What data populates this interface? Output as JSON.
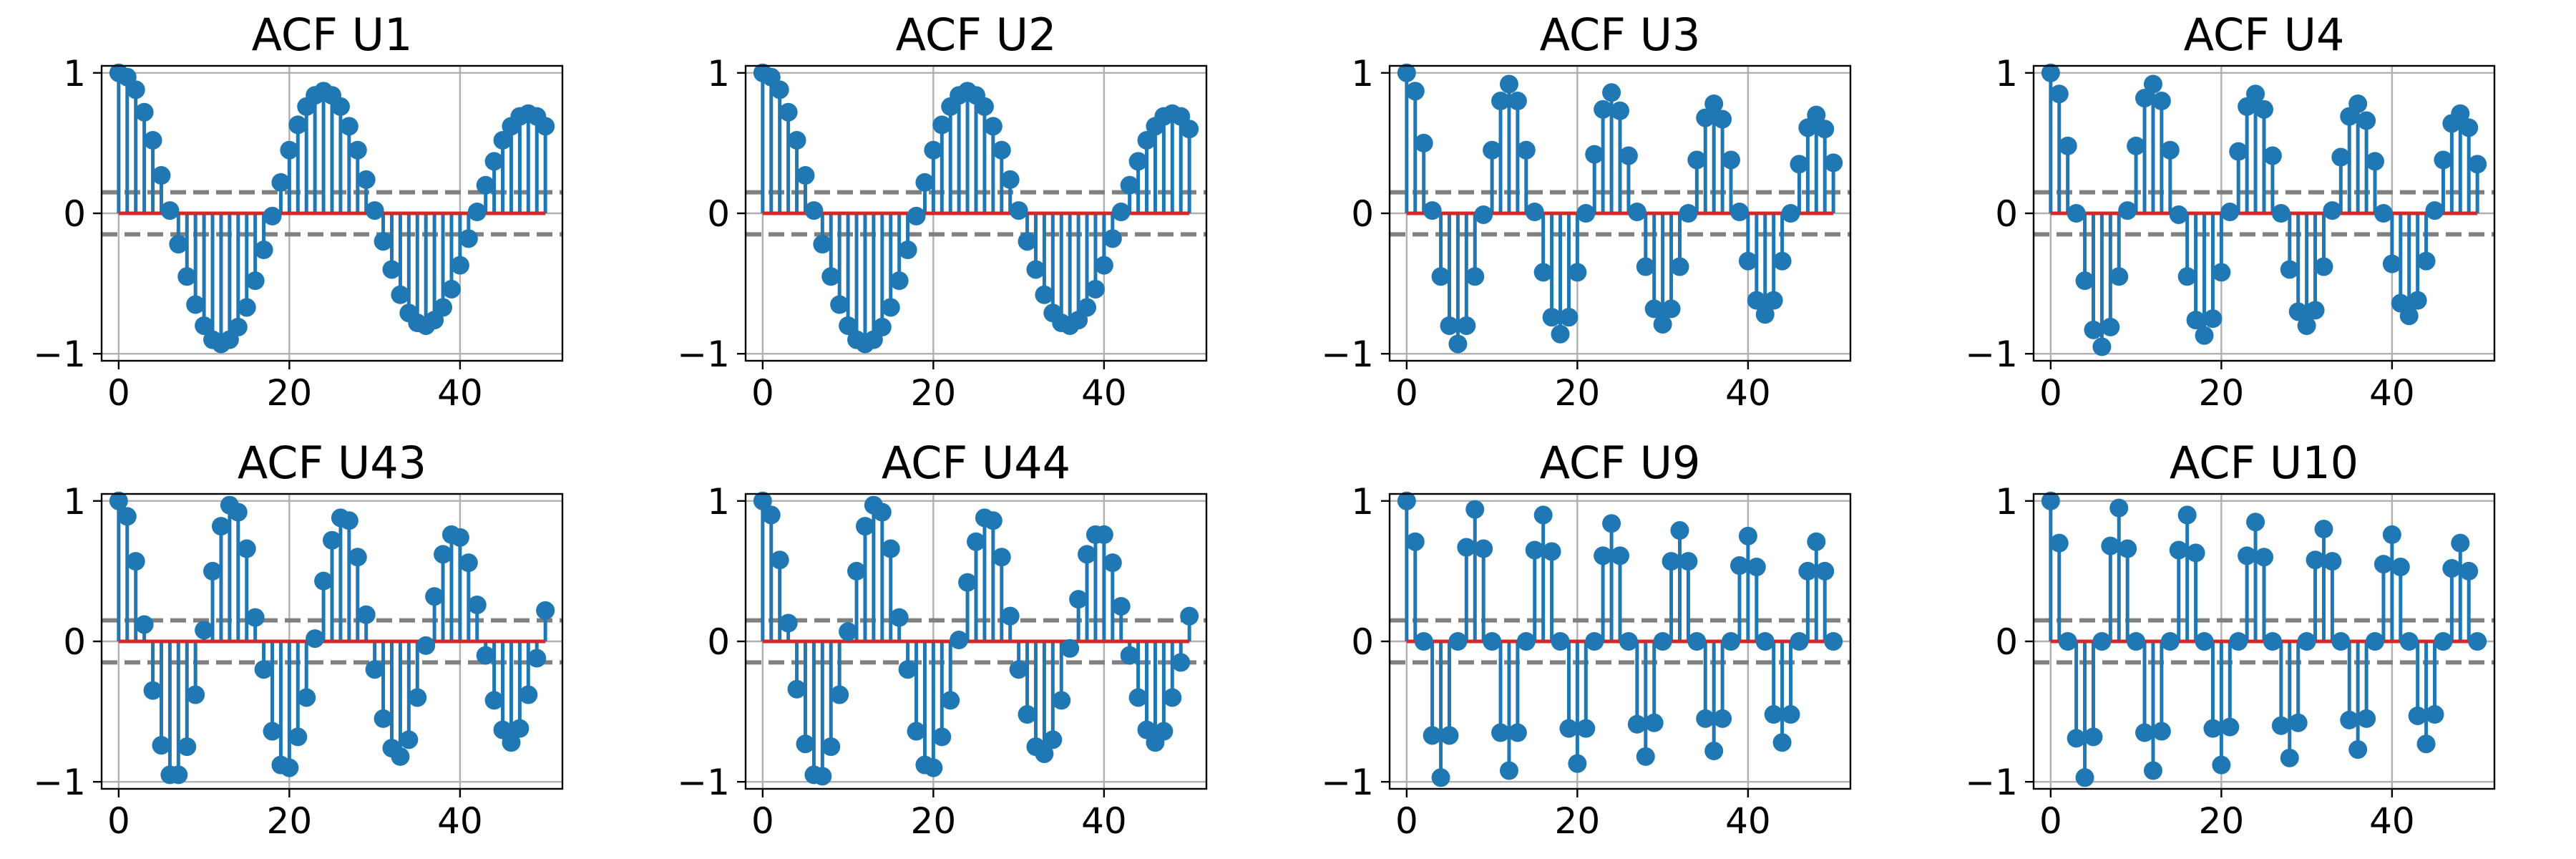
{
  "colors": {
    "stem": "#1f77b4",
    "baseline": "#d62728",
    "confidence_band": "#808080",
    "grid": "#b0b0b0"
  },
  "chart_data": [
    {
      "type": "stem",
      "title": "ACF U1",
      "xlim": [
        -2,
        52
      ],
      "ylim": [
        -1.05,
        1.05
      ],
      "xticks": [
        0,
        20,
        40
      ],
      "yticks": [
        -1,
        0,
        1
      ],
      "grid": true,
      "confidence_band": [
        -0.15,
        0.15
      ],
      "x": [
        0,
        1,
        2,
        3,
        4,
        5,
        6,
        7,
        8,
        9,
        10,
        11,
        12,
        13,
        14,
        15,
        16,
        17,
        18,
        19,
        20,
        21,
        22,
        23,
        24,
        25,
        26,
        27,
        28,
        29,
        30,
        31,
        32,
        33,
        34,
        35,
        36,
        37,
        38,
        39,
        40,
        41,
        42,
        43,
        44,
        45,
        46,
        47,
        48,
        49,
        50
      ],
      "values": [
        1.0,
        0.97,
        0.88,
        0.72,
        0.52,
        0.27,
        0.02,
        -0.22,
        -0.45,
        -0.65,
        -0.8,
        -0.9,
        -0.93,
        -0.9,
        -0.81,
        -0.67,
        -0.48,
        -0.26,
        -0.02,
        0.22,
        0.45,
        0.63,
        0.76,
        0.84,
        0.87,
        0.84,
        0.76,
        0.62,
        0.45,
        0.24,
        0.02,
        -0.2,
        -0.4,
        -0.58,
        -0.71,
        -0.78,
        -0.8,
        -0.76,
        -0.67,
        -0.54,
        -0.37,
        -0.18,
        0.01,
        0.2,
        0.37,
        0.52,
        0.62,
        0.69,
        0.71,
        0.69,
        0.62
      ]
    },
    {
      "type": "stem",
      "title": "ACF U2",
      "xlim": [
        -2,
        52
      ],
      "ylim": [
        -1.05,
        1.05
      ],
      "xticks": [
        0,
        20,
        40
      ],
      "yticks": [
        -1,
        0,
        1
      ],
      "grid": true,
      "confidence_band": [
        -0.15,
        0.15
      ],
      "x": [
        0,
        1,
        2,
        3,
        4,
        5,
        6,
        7,
        8,
        9,
        10,
        11,
        12,
        13,
        14,
        15,
        16,
        17,
        18,
        19,
        20,
        21,
        22,
        23,
        24,
        25,
        26,
        27,
        28,
        29,
        30,
        31,
        32,
        33,
        34,
        35,
        36,
        37,
        38,
        39,
        40,
        41,
        42,
        43,
        44,
        45,
        46,
        47,
        48,
        49,
        50
      ],
      "values": [
        1.0,
        0.97,
        0.88,
        0.72,
        0.52,
        0.27,
        0.02,
        -0.22,
        -0.45,
        -0.65,
        -0.8,
        -0.9,
        -0.93,
        -0.9,
        -0.81,
        -0.67,
        -0.48,
        -0.26,
        -0.02,
        0.22,
        0.45,
        0.63,
        0.76,
        0.84,
        0.87,
        0.84,
        0.76,
        0.62,
        0.45,
        0.24,
        0.02,
        -0.2,
        -0.4,
        -0.58,
        -0.71,
        -0.78,
        -0.8,
        -0.76,
        -0.67,
        -0.54,
        -0.37,
        -0.18,
        0.01,
        0.2,
        0.37,
        0.52,
        0.62,
        0.69,
        0.71,
        0.69,
        0.6
      ]
    },
    {
      "type": "stem",
      "title": "ACF U3",
      "xlim": [
        -2,
        52
      ],
      "ylim": [
        -1.05,
        1.05
      ],
      "xticks": [
        0,
        20,
        40
      ],
      "yticks": [
        -1,
        0,
        1
      ],
      "grid": true,
      "confidence_band": [
        -0.15,
        0.15
      ],
      "x": [
        0,
        1,
        2,
        3,
        4,
        5,
        6,
        7,
        8,
        9,
        10,
        11,
        12,
        13,
        14,
        15,
        16,
        17,
        18,
        19,
        20,
        21,
        22,
        23,
        24,
        25,
        26,
        27,
        28,
        29,
        30,
        31,
        32,
        33,
        34,
        35,
        36,
        37,
        38,
        39,
        40,
        41,
        42,
        43,
        44,
        45,
        46,
        47,
        48,
        49,
        50
      ],
      "values": [
        1.0,
        0.87,
        0.5,
        0.02,
        -0.45,
        -0.8,
        -0.93,
        -0.8,
        -0.45,
        -0.01,
        0.45,
        0.8,
        0.92,
        0.8,
        0.45,
        0.01,
        -0.42,
        -0.74,
        -0.86,
        -0.74,
        -0.42,
        0.0,
        0.42,
        0.74,
        0.86,
        0.73,
        0.41,
        0.01,
        -0.38,
        -0.68,
        -0.79,
        -0.68,
        -0.38,
        0.0,
        0.38,
        0.68,
        0.78,
        0.67,
        0.38,
        0.01,
        -0.34,
        -0.62,
        -0.72,
        -0.62,
        -0.34,
        0.0,
        0.35,
        0.61,
        0.7,
        0.6,
        0.36
      ]
    },
    {
      "type": "stem",
      "title": "ACF U4",
      "xlim": [
        -2,
        52
      ],
      "ylim": [
        -1.05,
        1.05
      ],
      "xticks": [
        0,
        20,
        40
      ],
      "yticks": [
        -1,
        0,
        1
      ],
      "grid": true,
      "confidence_band": [
        -0.15,
        0.15
      ],
      "x": [
        0,
        1,
        2,
        3,
        4,
        5,
        6,
        7,
        8,
        9,
        10,
        11,
        12,
        13,
        14,
        15,
        16,
        17,
        18,
        19,
        20,
        21,
        22,
        23,
        24,
        25,
        26,
        27,
        28,
        29,
        30,
        31,
        32,
        33,
        34,
        35,
        36,
        37,
        38,
        39,
        40,
        41,
        42,
        43,
        44,
        45,
        46,
        47,
        48,
        49,
        50
      ],
      "values": [
        1.0,
        0.85,
        0.48,
        0.0,
        -0.48,
        -0.83,
        -0.95,
        -0.81,
        -0.45,
        0.02,
        0.48,
        0.82,
        0.92,
        0.8,
        0.45,
        -0.01,
        -0.45,
        -0.76,
        -0.87,
        -0.75,
        -0.42,
        0.01,
        0.44,
        0.76,
        0.85,
        0.74,
        0.41,
        0.0,
        -0.4,
        -0.7,
        -0.8,
        -0.69,
        -0.38,
        0.02,
        0.4,
        0.69,
        0.78,
        0.66,
        0.37,
        0.0,
        -0.36,
        -0.64,
        -0.73,
        -0.62,
        -0.34,
        0.02,
        0.38,
        0.64,
        0.71,
        0.61,
        0.35
      ]
    },
    {
      "type": "stem",
      "title": "ACF U43",
      "xlim": [
        -2,
        52
      ],
      "ylim": [
        -1.05,
        1.05
      ],
      "xticks": [
        0,
        20,
        40
      ],
      "yticks": [
        -1,
        0,
        1
      ],
      "grid": true,
      "confidence_band": [
        -0.15,
        0.15
      ],
      "x": [
        0,
        1,
        2,
        3,
        4,
        5,
        6,
        7,
        8,
        9,
        10,
        11,
        12,
        13,
        14,
        15,
        16,
        17,
        18,
        19,
        20,
        21,
        22,
        23,
        24,
        25,
        26,
        27,
        28,
        29,
        30,
        31,
        32,
        33,
        34,
        35,
        36,
        37,
        38,
        39,
        40,
        41,
        42,
        43,
        44,
        45,
        46,
        47,
        48,
        49,
        50
      ],
      "values": [
        1.0,
        0.89,
        0.57,
        0.12,
        -0.35,
        -0.74,
        -0.95,
        -0.95,
        -0.75,
        -0.38,
        0.08,
        0.5,
        0.82,
        0.97,
        0.92,
        0.66,
        0.17,
        -0.2,
        -0.64,
        -0.88,
        -0.9,
        -0.68,
        -0.4,
        0.02,
        0.43,
        0.72,
        0.88,
        0.86,
        0.6,
        0.19,
        -0.2,
        -0.55,
        -0.76,
        -0.82,
        -0.7,
        -0.4,
        -0.03,
        0.32,
        0.62,
        0.76,
        0.74,
        0.56,
        0.26,
        -0.1,
        -0.42,
        -0.63,
        -0.72,
        -0.62,
        -0.38,
        -0.12,
        0.22
      ]
    },
    {
      "type": "stem",
      "title": "ACF U44",
      "xlim": [
        -2,
        52
      ],
      "ylim": [
        -1.05,
        1.05
      ],
      "xticks": [
        0,
        20,
        40
      ],
      "yticks": [
        -1,
        0,
        1
      ],
      "grid": true,
      "confidence_band": [
        -0.15,
        0.15
      ],
      "x": [
        0,
        1,
        2,
        3,
        4,
        5,
        6,
        7,
        8,
        9,
        10,
        11,
        12,
        13,
        14,
        15,
        16,
        17,
        18,
        19,
        20,
        21,
        22,
        23,
        24,
        25,
        26,
        27,
        28,
        29,
        30,
        31,
        32,
        33,
        34,
        35,
        36,
        37,
        38,
        39,
        40,
        41,
        42,
        43,
        44,
        45,
        46,
        47,
        48,
        49,
        50
      ],
      "values": [
        1.0,
        0.9,
        0.58,
        0.13,
        -0.34,
        -0.73,
        -0.95,
        -0.96,
        -0.75,
        -0.38,
        0.07,
        0.5,
        0.82,
        0.97,
        0.92,
        0.66,
        0.17,
        -0.2,
        -0.64,
        -0.88,
        -0.9,
        -0.68,
        -0.42,
        0.01,
        0.42,
        0.71,
        0.88,
        0.86,
        0.6,
        0.18,
        -0.2,
        -0.52,
        -0.75,
        -0.8,
        -0.7,
        -0.42,
        -0.05,
        0.3,
        0.62,
        0.76,
        0.76,
        0.56,
        0.25,
        -0.1,
        -0.4,
        -0.63,
        -0.72,
        -0.64,
        -0.4,
        -0.15,
        0.18
      ]
    },
    {
      "type": "stem",
      "title": "ACF U9",
      "xlim": [
        -2,
        52
      ],
      "ylim": [
        -1.05,
        1.05
      ],
      "xticks": [
        0,
        20,
        40
      ],
      "yticks": [
        -1,
        0,
        1
      ],
      "grid": true,
      "confidence_band": [
        -0.15,
        0.15
      ],
      "x": [
        0,
        1,
        2,
        3,
        4,
        5,
        6,
        7,
        8,
        9,
        10,
        11,
        12,
        13,
        14,
        15,
        16,
        17,
        18,
        19,
        20,
        21,
        22,
        23,
        24,
        25,
        26,
        27,
        28,
        29,
        30,
        31,
        32,
        33,
        34,
        35,
        36,
        37,
        38,
        39,
        40,
        41,
        42,
        43,
        44,
        45,
        46,
        47,
        48,
        49,
        50
      ],
      "values": [
        1.0,
        0.71,
        0.0,
        -0.67,
        -0.97,
        -0.67,
        0.0,
        0.67,
        0.94,
        0.66,
        0.0,
        -0.65,
        -0.92,
        -0.65,
        0.0,
        0.65,
        0.9,
        0.64,
        0.0,
        -0.62,
        -0.87,
        -0.62,
        0.0,
        0.61,
        0.84,
        0.61,
        0.0,
        -0.59,
        -0.82,
        -0.58,
        0.0,
        0.57,
        0.79,
        0.57,
        0.0,
        -0.55,
        -0.78,
        -0.55,
        0.0,
        0.54,
        0.75,
        0.53,
        0.0,
        -0.52,
        -0.72,
        -0.52,
        0.0,
        0.5,
        0.71,
        0.5,
        0.0
      ]
    },
    {
      "type": "stem",
      "title": "ACF U10",
      "xlim": [
        -2,
        52
      ],
      "ylim": [
        -1.05,
        1.05
      ],
      "xticks": [
        0,
        20,
        40
      ],
      "yticks": [
        -1,
        0,
        1
      ],
      "grid": true,
      "confidence_band": [
        -0.15,
        0.15
      ],
      "x": [
        0,
        1,
        2,
        3,
        4,
        5,
        6,
        7,
        8,
        9,
        10,
        11,
        12,
        13,
        14,
        15,
        16,
        17,
        18,
        19,
        20,
        21,
        22,
        23,
        24,
        25,
        26,
        27,
        28,
        29,
        30,
        31,
        32,
        33,
        34,
        35,
        36,
        37,
        38,
        39,
        40,
        41,
        42,
        43,
        44,
        45,
        46,
        47,
        48,
        49,
        50
      ],
      "values": [
        1.0,
        0.7,
        0.0,
        -0.69,
        -0.97,
        -0.68,
        0.0,
        0.68,
        0.95,
        0.66,
        0.0,
        -0.65,
        -0.92,
        -0.64,
        0.0,
        0.65,
        0.9,
        0.63,
        0.0,
        -0.62,
        -0.88,
        -0.61,
        0.0,
        0.61,
        0.85,
        0.6,
        0.0,
        -0.6,
        -0.83,
        -0.58,
        0.0,
        0.58,
        0.8,
        0.57,
        0.0,
        -0.56,
        -0.77,
        -0.55,
        0.0,
        0.55,
        0.76,
        0.53,
        0.0,
        -0.53,
        -0.73,
        -0.52,
        0.0,
        0.52,
        0.7,
        0.5,
        0.0
      ]
    }
  ]
}
